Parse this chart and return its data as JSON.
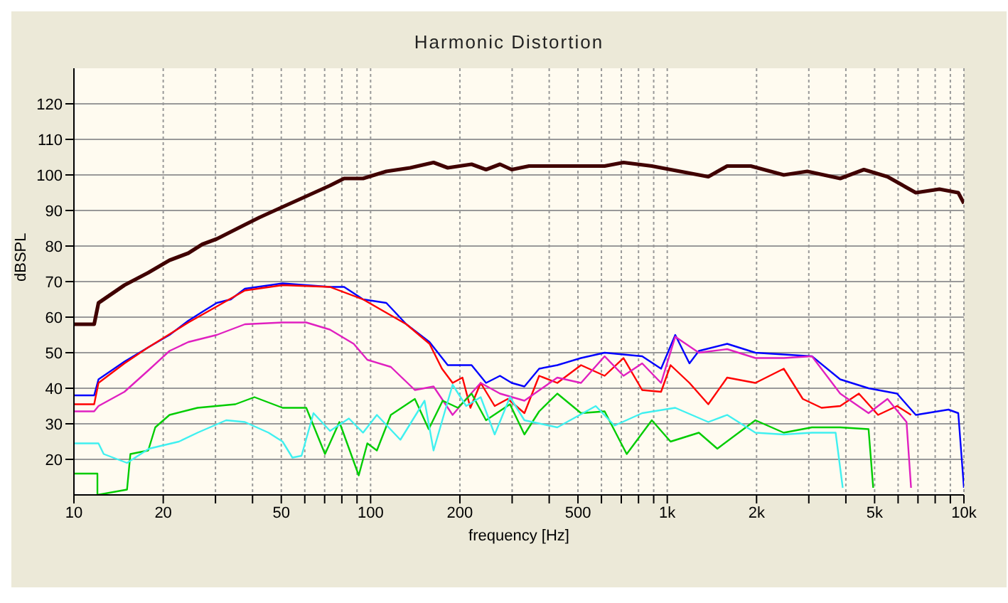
{
  "chart_data": {
    "type": "line",
    "title": "Harmonic Distortion",
    "xlabel": "frequency [Hz]",
    "ylabel": "dBSPL",
    "log": "x",
    "grid": true,
    "legend": false,
    "xlim": [
      10,
      10000
    ],
    "ylim": [
      10,
      130
    ],
    "xticks": [
      10,
      20,
      {
        "value": 30,
        "label": null
      },
      {
        "value": 40,
        "label": null
      },
      50,
      {
        "value": 60,
        "label": null
      },
      {
        "value": 70,
        "label": null
      },
      {
        "value": 80,
        "label": null
      },
      {
        "value": 90,
        "label": null
      },
      100,
      200,
      {
        "value": 300,
        "label": null
      },
      {
        "value": 400,
        "label": null
      },
      500,
      {
        "value": 600,
        "label": null
      },
      {
        "value": 700,
        "label": null
      },
      {
        "value": 800,
        "label": null
      },
      {
        "value": 900,
        "label": null
      },
      {
        "value": 1000,
        "label": "1k"
      },
      {
        "value": 2000,
        "label": "2k"
      },
      {
        "value": 3000,
        "label": null
      },
      {
        "value": 4000,
        "label": null
      },
      {
        "value": 5000,
        "label": "5k"
      },
      {
        "value": 6000,
        "label": null
      },
      {
        "value": 7000,
        "label": null
      },
      {
        "value": 8000,
        "label": null
      },
      {
        "value": 9000,
        "label": null
      },
      {
        "value": 10000,
        "label": "10k"
      }
    ],
    "yticks": [
      20,
      30,
      40,
      50,
      60,
      70,
      80,
      90,
      100,
      110,
      120
    ],
    "series": [
      {
        "color": "#400000",
        "x": [
          10,
          11.7,
          12.1,
          14.8,
          17.8,
          21,
          24.3,
          27.1,
          30.3,
          33.8,
          37.7,
          42.1,
          50.5,
          60.7,
          72.9,
          81.4,
          94.3,
          113,
          136,
          163,
          182,
          219,
          245,
          273,
          299,
          342,
          426,
          615,
          712,
          887,
          1026,
          1375,
          1592,
          1912,
          2470,
          2965,
          3828,
          4600,
          5525,
          6884,
          8265,
          9570,
          10000
        ],
        "values": [
          58,
          58,
          64,
          69,
          72.5,
          76,
          78,
          80.5,
          82,
          84,
          86,
          88,
          91,
          94,
          97,
          99,
          99,
          101,
          102,
          103.5,
          102,
          103,
          101.5,
          103,
          101.5,
          102.5,
          102.5,
          102.5,
          103.5,
          102.5,
          101.5,
          99.5,
          102.5,
          102.5,
          100,
          101,
          99,
          101.5,
          99.5,
          95,
          96,
          95,
          92
        ]
      },
      {
        "color": "#0000ff",
        "x": [
          10,
          11.7,
          12.1,
          14.8,
          17.8,
          21,
          24.3,
          27.1,
          30.3,
          33.8,
          37.7,
          50.5,
          60.7,
          72.9,
          81.4,
          94.3,
          113,
          132,
          158,
          182,
          219,
          245,
          273,
          299,
          330,
          370,
          426,
          512,
          615,
          823,
          953,
          1064,
          1188,
          1278,
          1592,
          1982,
          2470,
          3073,
          3828,
          4770,
          5950,
          6884,
          8870,
          9570,
          10000
        ],
        "values": [
          38,
          38,
          42.5,
          47.5,
          51.5,
          55,
          59,
          61.5,
          64,
          65,
          68,
          69.5,
          69,
          68.5,
          68.5,
          65,
          64,
          58,
          53,
          46.5,
          46.5,
          41.5,
          43.5,
          41.5,
          40.5,
          45.5,
          46.5,
          48.5,
          50,
          49,
          45.5,
          55,
          47,
          50.5,
          52.5,
          50,
          49.5,
          49,
          42.5,
          40,
          38.5,
          32.5,
          34,
          33,
          12
        ]
      },
      {
        "color": "#ff0000",
        "x": [
          10,
          11.7,
          12.1,
          14.8,
          17.8,
          24.3,
          30.3,
          37.7,
          50.5,
          72.9,
          94.3,
          132,
          158,
          174,
          189,
          204,
          217,
          235,
          262,
          290,
          330,
          370,
          426,
          512,
          615,
          712,
          823,
          953,
          1026,
          1188,
          1375,
          1592,
          1982,
          2470,
          2863,
          3312,
          3828,
          4425,
          5135,
          5950,
          6634
        ],
        "values": [
          35.5,
          35.5,
          41.5,
          47,
          51.5,
          58.5,
          63,
          67.5,
          69,
          68.5,
          65,
          58,
          52.5,
          45.5,
          41.5,
          43,
          34.5,
          41.5,
          35,
          37,
          33,
          43.5,
          41.5,
          46.5,
          43.5,
          48.5,
          39.5,
          39,
          46.5,
          41.5,
          35.5,
          43,
          41.5,
          45.5,
          37,
          34.5,
          35,
          38.5,
          32.5,
          35,
          32.5
        ]
      },
      {
        "color": "#e020c0",
        "x": [
          10,
          11.7,
          12.1,
          14.8,
          17.8,
          21,
          24.3,
          30.3,
          37.7,
          50.5,
          60.7,
          72.9,
          87.7,
          97.5,
          117,
          141,
          163,
          189,
          210,
          235,
          273,
          330,
          426,
          512,
          615,
          712,
          823,
          953,
          1064,
          1278,
          1592,
          1982,
          2470,
          3073,
          3828,
          4770,
          5525,
          6405,
          6634
        ],
        "values": [
          33.5,
          33.5,
          35,
          39,
          45,
          50.5,
          53,
          55,
          58,
          58.5,
          58.5,
          56.5,
          52.5,
          48,
          46,
          39.5,
          40.5,
          32.5,
          37,
          41.5,
          38.5,
          36.5,
          43,
          41.5,
          49,
          43.5,
          47,
          41.5,
          54.5,
          50,
          51,
          48.5,
          48.5,
          49,
          38.5,
          33,
          37,
          30.5,
          12
        ]
      },
      {
        "color": "#00cc00",
        "x": [
          10,
          12,
          12,
          15.1,
          15.5,
          17.8,
          18.8,
          21,
          26.1,
          35,
          40.6,
          50.5,
          60.7,
          70.2,
          78.5,
          91.2,
          97.5,
          105,
          117,
          141,
          157,
          175,
          197,
          219,
          245,
          295,
          330,
          370,
          426,
          512,
          615,
          730,
          887,
          1026,
          1278,
          1475,
          1982,
          2470,
          3073,
          3828,
          4770,
          4945
        ],
        "values": [
          16,
          16,
          10,
          11.5,
          21.5,
          22.5,
          29,
          32.5,
          34.5,
          35.5,
          37.5,
          34.5,
          34.5,
          21.5,
          30.5,
          15.5,
          24.5,
          22.5,
          32.5,
          37,
          28.5,
          36.5,
          34.5,
          38.5,
          31,
          35.5,
          27,
          33.5,
          38.5,
          33,
          33.5,
          21.5,
          31,
          25,
          27.5,
          23,
          31,
          27.5,
          29,
          29,
          28.5,
          12
        ]
      },
      {
        "color": "#40f0f0",
        "x": [
          10,
          12.1,
          12.6,
          15.1,
          17.9,
          22.6,
          26.1,
          32.6,
          37.7,
          45.3,
          50.5,
          54.5,
          58.5,
          64.2,
          73,
          84.5,
          94.3,
          105,
          126,
          152,
          163,
          189,
          210,
          235,
          262,
          295,
          330,
          426,
          574,
          664,
          823,
          1064,
          1375,
          1592,
          1982,
          2470,
          3073,
          3694,
          3904
        ],
        "values": [
          24.5,
          24.5,
          21.5,
          19,
          23,
          25,
          27.5,
          31,
          30.5,
          27.5,
          25,
          20.5,
          21,
          33,
          28,
          31.5,
          27.5,
          32.5,
          25.5,
          36.5,
          22.5,
          41,
          35,
          37.5,
          27,
          37.5,
          31,
          29,
          35,
          29.5,
          33,
          34.5,
          30.5,
          32.5,
          27.5,
          27,
          27.5,
          27.5,
          12
        ]
      }
    ]
  }
}
